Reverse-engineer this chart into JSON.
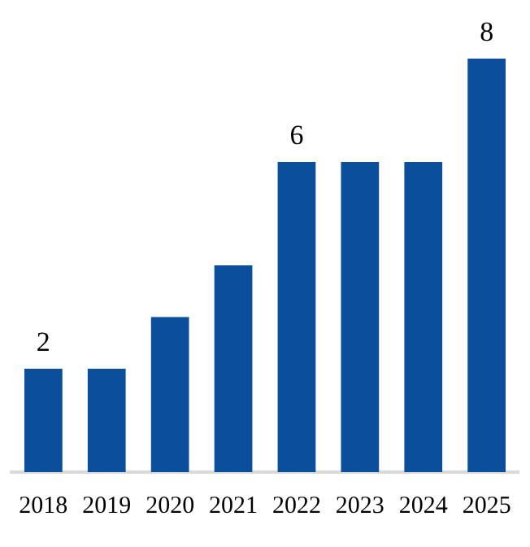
{
  "chart_data": {
    "type": "bar",
    "categories": [
      "2018",
      "2019",
      "2020",
      "2021",
      "2022",
      "2023",
      "2024",
      "2025"
    ],
    "values": [
      2,
      2,
      3,
      4,
      6,
      6,
      6,
      8
    ],
    "value_labels": [
      "2",
      null,
      null,
      null,
      "6",
      null,
      null,
      "8"
    ],
    "color": "#0b4f9c",
    "grid": false,
    "legend": false
  }
}
